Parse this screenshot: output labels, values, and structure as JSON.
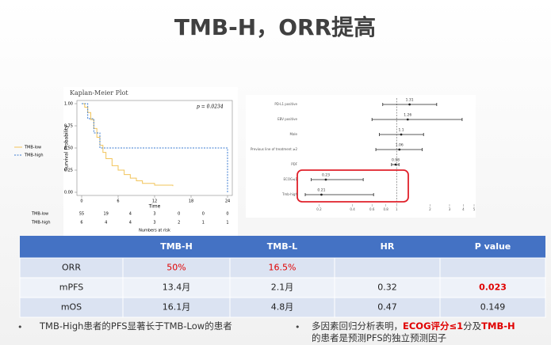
{
  "title": "TMB-H，ORR提高",
  "chart_data": [
    {
      "type": "line",
      "step": true,
      "title": "Kaplan-Meier Plot",
      "annotation": "p = 0.0234",
      "x_label": "Time",
      "y_label": "Survival Probability",
      "xlim": [
        0,
        24
      ],
      "xticks": [
        0,
        6,
        12,
        18,
        24
      ],
      "ylim": [
        0,
        1
      ],
      "yticks": [
        {
          "value": 0,
          "label": "0.00"
        },
        {
          "value": 0.25,
          "label": "0.25"
        },
        {
          "value": 0.5,
          "label": "0.50"
        },
        {
          "value": 0.75,
          "label": "0.75"
        },
        {
          "value": 1,
          "label": "1.00"
        }
      ],
      "series": [
        {
          "name": "TMB-low",
          "color": "#f2c45a",
          "dashed": false,
          "x": [
            0,
            0.5,
            1,
            1.5,
            2,
            2.5,
            3,
            3.5,
            4,
            5,
            6,
            7,
            8,
            9,
            10,
            12,
            15
          ],
          "values": [
            1,
            0.96,
            0.9,
            0.82,
            0.72,
            0.62,
            0.53,
            0.45,
            0.38,
            0.3,
            0.25,
            0.2,
            0.16,
            0.13,
            0.1,
            0.08,
            0.07
          ]
        },
        {
          "name": "TMB-high",
          "color": "#3b7bd0",
          "dashed": true,
          "x": [
            0,
            1,
            2,
            3,
            24,
            24
          ],
          "values": [
            1,
            0.83,
            0.67,
            0.5,
            0.5,
            0
          ]
        }
      ],
      "risk_table": {
        "title": "Numbers at risk",
        "rows": [
          {
            "name": "TMB-low",
            "counts": [
              55,
              19,
              4,
              3,
              0,
              0,
              0
            ]
          },
          {
            "name": "TMB-high",
            "counts": [
              6,
              4,
              4,
              3,
              2,
              1,
              1
            ]
          }
        ]
      }
    },
    {
      "type": "forest",
      "log_scale": true,
      "xlim": [
        0.15,
        5
      ],
      "xticks": [
        0.2,
        0.4,
        0.6,
        0.8,
        1,
        2,
        3,
        4,
        5
      ],
      "reference": 1,
      "categories": [
        "PD-L1 positive",
        "EBV positive",
        "Male",
        "Previous line of treatment ≥2",
        "PDF",
        "ECOG≤1",
        "Tmb-high"
      ],
      "values": [
        1.31,
        1.26,
        1.1,
        1.06,
        0.98,
        0.23,
        0.21
      ],
      "ci_low": [
        0.75,
        0.6,
        0.7,
        0.65,
        0.9,
        0.17,
        0.15
      ],
      "ci_high": [
        2.3,
        3.9,
        1.75,
        1.7,
        1.05,
        0.5,
        0.62
      ],
      "color": "#222222",
      "highlight_rows": [
        5,
        6
      ],
      "highlight_color": "#e0202a"
    }
  ],
  "table": {
    "header_color": "#4472c4",
    "row_colors": [
      "#dbe3f2",
      "#eef2f9"
    ],
    "highlight_color": "#e00000",
    "header": [
      null,
      "TMB-H",
      "TMB-L",
      "HR",
      "P value"
    ],
    "rows": [
      [
        "ORR",
        "50%",
        "16.5%",
        null,
        null
      ],
      [
        "mPFS",
        "13.4月",
        "2.1月",
        "0.32",
        "0.023"
      ],
      [
        "mOS",
        "16.1月",
        "4.8月",
        "0.47",
        "0.149"
      ]
    ],
    "highlight": [
      [
        0,
        1
      ],
      [
        0,
        2
      ],
      [
        1,
        4
      ]
    ]
  },
  "bullets": [
    {
      "lines": [
        [
          {
            "text": "TMB-High患者的PFS显著长于TMB-Low的患者",
            "emphasis": false
          }
        ]
      ]
    },
    {
      "lines": [
        [
          {
            "text": "多因素回归分析表明，",
            "emphasis": false
          },
          {
            "text": "ECOG评分≤1",
            "emphasis": true
          },
          {
            "text": "分及",
            "emphasis": false
          },
          {
            "text": "TMB-H",
            "emphasis": true
          }
        ],
        [
          {
            "text": "的患者是预测PFS的独立预测因子",
            "emphasis": false
          }
        ]
      ]
    }
  ]
}
